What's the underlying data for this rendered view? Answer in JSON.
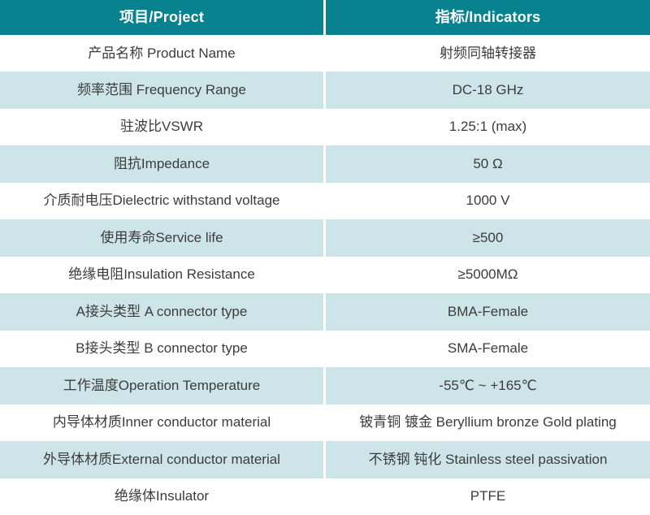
{
  "table": {
    "header": {
      "project": "项目/Project",
      "indicators": "指标/Indicators"
    },
    "rows": [
      {
        "label": "产品名称 Product Name",
        "value": "射频同轴转接器"
      },
      {
        "label": "频率范围 Frequency Range",
        "value": "DC-18 GHz"
      },
      {
        "label": "驻波比VSWR",
        "value": "1.25:1 (max)"
      },
      {
        "label": "阻抗Impedance",
        "value": "50 Ω"
      },
      {
        "label": "介质耐电压Dielectric withstand voltage",
        "value": "1000 V"
      },
      {
        "label": "使用寿命Service life",
        "value": "≥500"
      },
      {
        "label": "绝缘电阻Insulation Resistance",
        "value": "≥5000MΩ"
      },
      {
        "label": "A接头类型 A connector type",
        "value": "BMA-Female"
      },
      {
        "label": "B接头类型 B connector type",
        "value": "SMA-Female"
      },
      {
        "label": "工作温度Operation Temperature",
        "value": "-55℃ ~ +165℃"
      },
      {
        "label": "内导体材质Inner conductor material",
        "value": "铍青铜 镀金 Beryllium bronze Gold plating"
      },
      {
        "label": "外导体材质External conductor material",
        "value": "不锈钢 钝化 Stainless steel passivation"
      },
      {
        "label": "绝缘体Insulator",
        "value": "PTFE"
      }
    ],
    "colors": {
      "header_bg": "#07828e",
      "header_text": "#ffffff",
      "row_bg": "#ffffff",
      "row_alt_bg": "#cde5e9",
      "body_text": "#3c3c3c"
    }
  }
}
